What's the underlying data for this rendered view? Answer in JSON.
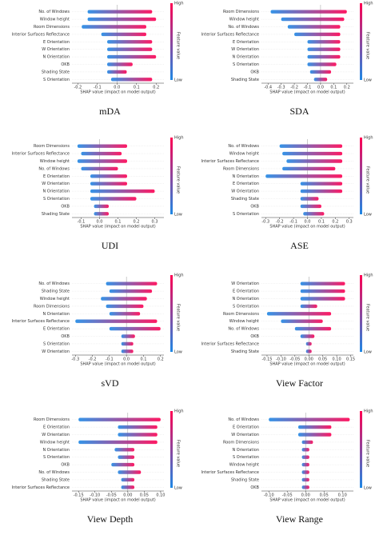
{
  "chart_data": [
    {
      "type": "beeswarm",
      "title": "mDA",
      "xlabel": "SHAP value (impact on model output)",
      "categories": [
        "No. of Windows",
        "Window height",
        "Room Dimensions",
        "Interior Surfaces Reflectance",
        "E Orientation",
        "W Orientation",
        "N Orientation",
        "OKB",
        "Shading State",
        "S Orientation"
      ],
      "ranges": [
        [
          -0.15,
          0.18
        ],
        [
          -0.15,
          0.2
        ],
        [
          -0.18,
          0.15
        ],
        [
          -0.08,
          0.15
        ],
        [
          -0.05,
          0.18
        ],
        [
          -0.05,
          0.18
        ],
        [
          -0.05,
          0.2
        ],
        [
          -0.05,
          0.08
        ],
        [
          -0.05,
          0.05
        ],
        [
          -0.03,
          0.18
        ]
      ],
      "xlim": [
        -0.23,
        0.24
      ],
      "xticks": [
        -0.2,
        -0.1,
        {
          "value": 0,
          "label": "0.0"
        },
        0.1,
        0.2
      ],
      "colorbar": {
        "high": "High",
        "low": "Low",
        "label": "Feature value"
      },
      "colors": [
        "#1e88e5",
        "#ff0052"
      ]
    },
    {
      "type": "beeswarm",
      "title": "SDA",
      "xlabel": "SHAP value (impact on model output)",
      "categories": [
        "Room Dimensions",
        "Window height",
        "No. of Windows",
        "Interior Surfaces Reflectance",
        "E Orientation",
        "W Orientation",
        "N Orientation",
        "S Orientation",
        "OKB",
        "Shading State"
      ],
      "ranges": [
        [
          -0.38,
          0.2
        ],
        [
          -0.3,
          0.18
        ],
        [
          -0.25,
          0.15
        ],
        [
          -0.2,
          0.15
        ],
        [
          -0.1,
          0.15
        ],
        [
          -0.1,
          0.15
        ],
        [
          -0.1,
          0.15
        ],
        [
          -0.1,
          0.12
        ],
        [
          -0.08,
          0.08
        ],
        [
          -0.05,
          0.05
        ]
      ],
      "xlim": [
        -0.45,
        0.25
      ],
      "xticks": [
        -0.4,
        -0.3,
        -0.2,
        -0.1,
        {
          "value": 0,
          "label": "0.0"
        },
        0.1,
        0.2
      ],
      "colorbar": {
        "high": "High",
        "low": "Low",
        "label": "Feature value"
      },
      "colors": [
        "#1e88e5",
        "#ff0052"
      ]
    },
    {
      "type": "beeswarm",
      "title": "UDI",
      "xlabel": "SHAP value (impact on model output)",
      "categories": [
        "Room Dimensions",
        "Interior Surfaces Reflectance",
        "Window height",
        "No. of Windows",
        "E Orientation",
        "W Orientation",
        "N Orientation",
        "S Orientation",
        "OKB",
        "Shading State"
      ],
      "ranges": [
        [
          -0.12,
          0.15
        ],
        [
          -0.1,
          0.12
        ],
        [
          -0.12,
          0.15
        ],
        [
          -0.1,
          0.1
        ],
        [
          -0.05,
          0.15
        ],
        [
          -0.05,
          0.15
        ],
        [
          -0.05,
          0.3
        ],
        [
          -0.05,
          0.2
        ],
        [
          -0.03,
          0.05
        ],
        [
          -0.03,
          0.05
        ]
      ],
      "xlim": [
        -0.15,
        0.35
      ],
      "xticks": [
        -0.1,
        {
          "value": 0,
          "label": "0.0"
        },
        0.1,
        0.2,
        0.3
      ],
      "colorbar": {
        "high": "High",
        "low": "Low",
        "label": "Feature value"
      },
      "colors": [
        "#1e88e5",
        "#ff0052"
      ]
    },
    {
      "type": "beeswarm",
      "title": "ASE",
      "xlabel": "SHAP value (impact on model output)",
      "categories": [
        "No. of Windows",
        "Window height",
        "Interior Surfaces Reflectance",
        "Room Dimensions",
        "N Orientation",
        "E Orientation",
        "W Orientation",
        "Shading State",
        "OKB",
        "S Orientation"
      ],
      "ranges": [
        [
          -0.2,
          0.25
        ],
        [
          -0.18,
          0.25
        ],
        [
          -0.15,
          0.25
        ],
        [
          -0.18,
          0.2
        ],
        [
          -0.3,
          0.25
        ],
        [
          -0.05,
          0.25
        ],
        [
          -0.05,
          0.25
        ],
        [
          -0.05,
          0.08
        ],
        [
          -0.05,
          0.1
        ],
        [
          -0.03,
          0.12
        ]
      ],
      "xlim": [
        -0.33,
        0.33
      ],
      "xticks": [
        -0.3,
        -0.2,
        -0.1,
        {
          "value": 0,
          "label": "0.0"
        },
        0.1,
        0.2,
        0.3
      ],
      "colorbar": {
        "high": "High",
        "low": "Low",
        "label": "Feature value"
      },
      "colors": [
        "#1e88e5",
        "#ff0052"
      ]
    },
    {
      "type": "beeswarm",
      "title": "sVD",
      "xlabel": "SHAP value (impact on model output)",
      "categories": [
        "No. of Windows",
        "Shading State",
        "Window height",
        "Room Dimensions",
        "N Orientation",
        "Interior Surfaces Reflectance",
        "E Orientation",
        "OKB",
        "S Orientation",
        "W Orientation"
      ],
      "ranges": [
        [
          -0.12,
          0.18
        ],
        [
          -0.1,
          0.15
        ],
        [
          -0.15,
          0.12
        ],
        [
          -0.12,
          0.1
        ],
        [
          -0.1,
          0.08
        ],
        [
          -0.3,
          0.18
        ],
        [
          -0.1,
          0.2
        ],
        [
          -0.03,
          0.05
        ],
        [
          -0.03,
          0.04
        ],
        [
          -0.03,
          0.04
        ]
      ],
      "xlim": [
        -0.32,
        0.22
      ],
      "xticks": [
        -0.3,
        -0.2,
        -0.1,
        {
          "value": 0,
          "label": "0.0"
        },
        0.1,
        0.2
      ],
      "colorbar": {
        "high": "High",
        "low": "Low",
        "label": "Feature value"
      },
      "colors": [
        "#1e88e5",
        "#ff0052"
      ]
    },
    {
      "type": "beeswarm",
      "title": "View Factor",
      "xlabel": "SHAP value (impact on model output)",
      "categories": [
        "W Orientation",
        "E Orientation",
        "N Orientation",
        "S Orientation",
        "Room Dimensions",
        "Window height",
        "No. of Windows",
        "OKB",
        "Interior Surfaces Reflectance",
        "Shading State"
      ],
      "ranges": [
        [
          -0.03,
          0.13
        ],
        [
          -0.03,
          0.13
        ],
        [
          -0.03,
          0.13
        ],
        [
          -0.03,
          0.03
        ],
        [
          -0.15,
          0.08
        ],
        [
          -0.1,
          0.05
        ],
        [
          -0.05,
          0.08
        ],
        [
          -0.03,
          0.02
        ],
        [
          -0.01,
          0.01
        ],
        [
          -0.01,
          0.01
        ]
      ],
      "xlim": [
        -0.17,
        0.16
      ],
      "xticks": [
        -0.15,
        {
          "value": -0.1,
          "label": "-0.10"
        },
        -0.05,
        {
          "value": 0,
          "label": "0.00"
        },
        0.05,
        {
          "value": 0.1,
          "label": "0.10"
        },
        0.15
      ],
      "colorbar": {
        "high": "High",
        "low": "Low",
        "label": "Feature value"
      },
      "colors": [
        "#1e88e5",
        "#ff0052"
      ]
    },
    {
      "type": "beeswarm",
      "title": "View Depth",
      "xlabel": "SHAP value (impact on model output)",
      "categories": [
        "Room Dimensions",
        "E Orientation",
        "W Orientation",
        "Window height",
        "N Orientation",
        "S Orientation",
        "OKB",
        "No. of Windows",
        "Shading State",
        "Interior Surfaces Reflectance"
      ],
      "ranges": [
        [
          -0.15,
          0.1
        ],
        [
          -0.03,
          0.09
        ],
        [
          -0.03,
          0.09
        ],
        [
          -0.15,
          0.09
        ],
        [
          -0.04,
          0.02
        ],
        [
          -0.03,
          0.02
        ],
        [
          -0.05,
          0.02
        ],
        [
          -0.03,
          0.04
        ],
        [
          -0.02,
          0.02
        ],
        [
          -0.02,
          0.02
        ]
      ],
      "xlim": [
        -0.17,
        0.11
      ],
      "xticks": [
        -0.15,
        {
          "value": -0.1,
          "label": "-0.10"
        },
        -0.05,
        {
          "value": 0,
          "label": "0.00"
        },
        0.05,
        {
          "value": 0.1,
          "label": "0.10"
        }
      ],
      "colorbar": {
        "high": "High",
        "low": "Low",
        "label": "Feature value"
      },
      "colors": [
        "#1e88e5",
        "#ff0052"
      ]
    },
    {
      "type": "beeswarm",
      "title": "View Range",
      "xlabel": "SHAP value (impact on model output)",
      "categories": [
        "No. of Windows",
        "E Orientation",
        "W Orientation",
        "Room Dimensions",
        "N Orientation",
        "S Orientation",
        "Window height",
        "Interior Surfaces Reflectance",
        "Shading State",
        "OKB"
      ],
      "ranges": [
        [
          -0.1,
          0.12
        ],
        [
          -0.02,
          0.07
        ],
        [
          -0.02,
          0.07
        ],
        [
          -0.01,
          0.02
        ],
        [
          -0.01,
          0.01
        ],
        [
          -0.01,
          0.01
        ],
        [
          -0.01,
          0.01
        ],
        [
          -0.01,
          0.01
        ],
        [
          -0.01,
          0.01
        ],
        [
          -0.01,
          0.01
        ]
      ],
      "xlim": [
        -0.12,
        0.13
      ],
      "xticks": [
        {
          "value": -0.1,
          "label": "-0.10"
        },
        -0.05,
        {
          "value": 0,
          "label": "0.00"
        },
        0.05,
        {
          "value": 0.1,
          "label": "0.10"
        }
      ],
      "colorbar": {
        "high": "High",
        "low": "Low",
        "label": "Feature value"
      },
      "colors": [
        "#1e88e5",
        "#ff0052"
      ]
    }
  ]
}
